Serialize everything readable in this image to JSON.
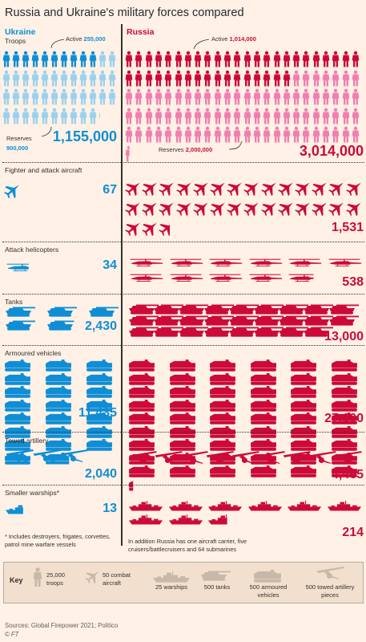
{
  "title": "Russia and Ukraine's military forces compared",
  "countries": {
    "ukraine": "Ukraine",
    "russia": "Russia"
  },
  "colors": {
    "ukraine": "#0f8ed6",
    "ukraine_light": "#9bd1ef",
    "russia": "#cc0a3a",
    "russia_light": "#f27eb0",
    "key": "#c8b8a8"
  },
  "troops": {
    "label": "Troops",
    "ukraine": {
      "active_label": "Active",
      "active_value": "255,000",
      "reserves_label": "Reserves",
      "reserves_value": "900,000",
      "total": "1,155,000"
    },
    "russia": {
      "active_label": "Active",
      "active_value": "1,014,000",
      "reserves_label": "Reserves",
      "reserves_value": "2,000,000",
      "total": "3,014,000"
    }
  },
  "fighter": {
    "label": "Fighter and attack aircraft",
    "ukraine_total": "67",
    "russia_total": "1,531"
  },
  "helicopters": {
    "label": "Attack helicopters",
    "ukraine_total": "34",
    "russia_total": "538"
  },
  "tanks": {
    "label": "Tanks",
    "ukraine_total": "2,430",
    "russia_total": "13,000"
  },
  "armoured": {
    "label": "Armoured vehicles",
    "ukraine_total": "11,435",
    "russia_total": "27,100"
  },
  "artillery": {
    "label": "Towed artillery",
    "ukraine_total": "2,040",
    "russia_total": "4,465"
  },
  "warships": {
    "label": "Smaller warships*",
    "ukraine_total": "13",
    "russia_total": "214",
    "footnote": "* Includes destroyers, frigates, corvettes, patrol mine warfare vessels",
    "russia_note": "In addition Russia has one aircraft carrier, five cruisers/battlecruisers and 64 submarines"
  },
  "key": {
    "label": "Key",
    "items": [
      {
        "icon": "troop",
        "text": "25,000 troops"
      },
      {
        "icon": "jet",
        "text": "50 combat aircraft"
      },
      {
        "icon": "ship",
        "text": "25 warships"
      },
      {
        "icon": "tank",
        "text": "500 tanks"
      },
      {
        "icon": "apc",
        "text": "500 armoured vehicles"
      },
      {
        "icon": "gun",
        "text": "500 towed artillery pieces"
      }
    ]
  },
  "source": "Sources: Global Firepower 2021; Politico",
  "credit": "© FT",
  "chart_data": {
    "type": "table",
    "categories": [
      "Troops",
      "Fighter and attack aircraft",
      "Attack helicopters",
      "Tanks",
      "Armoured vehicles",
      "Towed artillery",
      "Smaller warships*"
    ],
    "series": [
      {
        "name": "Ukraine",
        "values": [
          1155000,
          67,
          34,
          2430,
          11435,
          2040,
          13
        ]
      },
      {
        "name": "Russia",
        "values": [
          3014000,
          1531,
          538,
          13000,
          27100,
          4465,
          214
        ]
      }
    ],
    "troop_breakdown": {
      "Ukraine": {
        "Active": 255000,
        "Reserves": 900000
      },
      "Russia": {
        "Active": 1014000,
        "Reserves": 2000000
      }
    }
  }
}
